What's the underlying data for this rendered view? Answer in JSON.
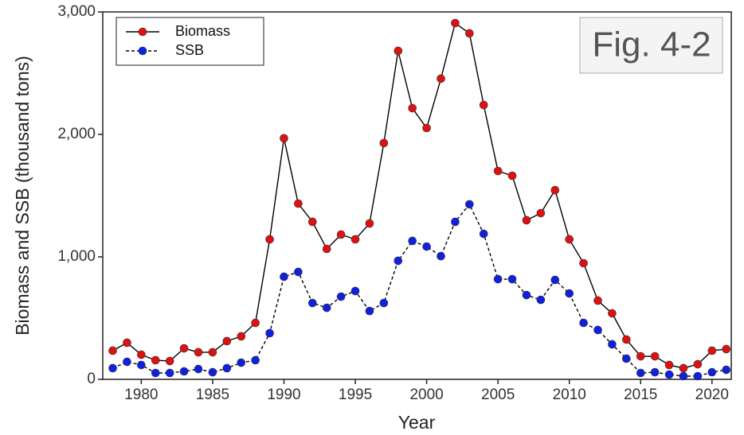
{
  "chart_data": {
    "type": "line",
    "x_label": "Year",
    "y_label": "Biomass and SSB (thousand tons)",
    "annotation": "Fig. 4-2",
    "x": [
      1978,
      1979,
      1980,
      1981,
      1982,
      1983,
      1984,
      1985,
      1986,
      1987,
      1988,
      1989,
      1990,
      1991,
      1992,
      1993,
      1994,
      1995,
      1996,
      1997,
      1998,
      1999,
      2000,
      2001,
      2002,
      2003,
      2004,
      2005,
      2006,
      2007,
      2008,
      2009,
      2010,
      2011,
      2012,
      2013,
      2014,
      2015,
      2016,
      2017,
      2018,
      2019,
      2020,
      2021
    ],
    "series": [
      {
        "name": "Biomass",
        "color": "#e01010",
        "line_color": "#000000",
        "dashed": false,
        "values": [
          234,
          299,
          201,
          156,
          149,
          253,
          221,
          221,
          312,
          351,
          461,
          1143,
          1968,
          1435,
          1286,
          1065,
          1182,
          1143,
          1273,
          1929,
          2682,
          2214,
          2052,
          2455,
          2909,
          2825,
          2240,
          1701,
          1662,
          1299,
          1357,
          1545,
          1143,
          948,
          643,
          539,
          325,
          188,
          188,
          117,
          91,
          123,
          234,
          247
        ]
      },
      {
        "name": "SSB",
        "color": "#1020e0",
        "line_color": "#000000",
        "dashed": true,
        "values": [
          91,
          143,
          117,
          52,
          52,
          65,
          84,
          58,
          91,
          136,
          156,
          377,
          838,
          877,
          623,
          584,
          675,
          721,
          558,
          623,
          968,
          1130,
          1084,
          1006,
          1286,
          1429,
          1188,
          818,
          818,
          688,
          649,
          812,
          701,
          461,
          403,
          286,
          169,
          52,
          58,
          39,
          26,
          26,
          58,
          78
        ]
      }
    ],
    "xlim": [
      1977.3,
      2021.35
    ],
    "xticks": [
      1980,
      1985,
      1990,
      1995,
      2000,
      2005,
      2010,
      2015,
      2020
    ],
    "ylim": [
      0,
      3000
    ],
    "yticks": [
      0,
      {
        "value": 1000,
        "label": "1,000"
      },
      {
        "value": 2000,
        "label": "2,000"
      },
      {
        "value": 3000,
        "label": "3,000"
      }
    ],
    "legend": "upper left",
    "grid": false
  }
}
